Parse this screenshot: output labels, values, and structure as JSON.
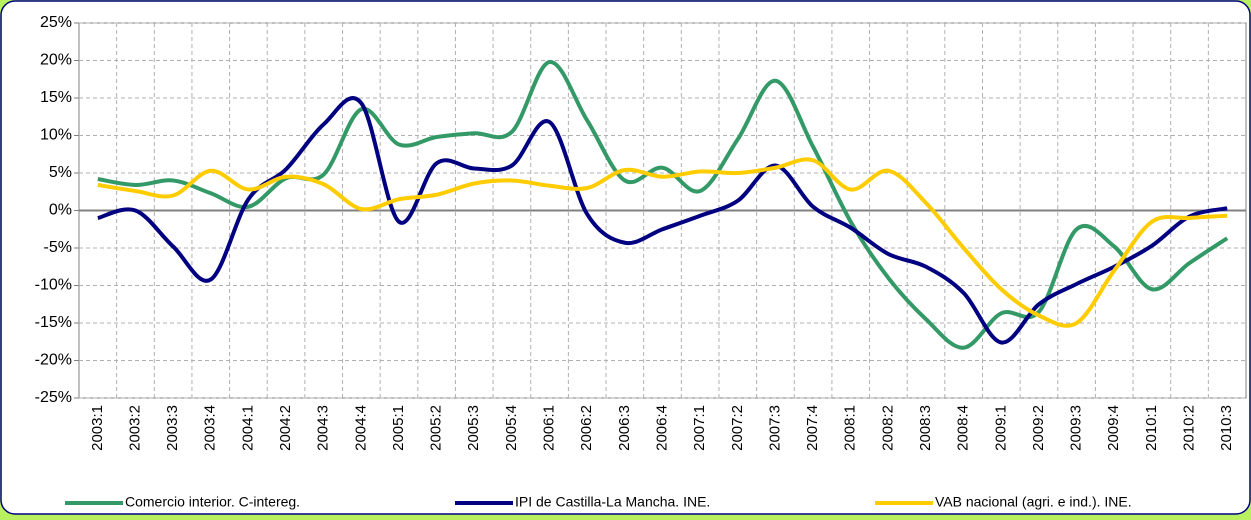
{
  "chart_data": {
    "type": "line",
    "categories": [
      "2003:1",
      "2003:2",
      "2003:3",
      "2003:4",
      "2004:1",
      "2004:2",
      "2004:3",
      "2004:4",
      "2005:1",
      "2005:2",
      "2005:3",
      "2005:4",
      "2006:1",
      "2006:2",
      "2006:3",
      "2006:4",
      "2007:1",
      "2007:2",
      "2007:3",
      "2007:4",
      "2008:1",
      "2008:2",
      "2008:3",
      "2008:4",
      "2009:1",
      "2009:2",
      "2009:3",
      "2009:4",
      "2010:1",
      "2010:2",
      "2010:3"
    ],
    "series": [
      {
        "name": "Comercio interior. C-intereg.",
        "color": "#339966",
        "values": [
          4.2,
          3.4,
          4.0,
          2.3,
          0.5,
          4.3,
          4.8,
          13.5,
          8.8,
          9.8,
          10.3,
          10.5,
          19.8,
          12.0,
          4.0,
          5.7,
          2.6,
          9.5,
          17.3,
          8.5,
          -1.5,
          -9.0,
          -14.5,
          -18.3,
          -13.7,
          -13.5,
          -2.5,
          -4.8,
          -10.5,
          -7.0,
          -3.7
        ]
      },
      {
        "name": "IPI de Castilla-La Mancha. INE.",
        "color": "#000080",
        "values": [
          -1.0,
          0.0,
          -4.8,
          -9.2,
          1.5,
          5.5,
          11.5,
          14.3,
          -1.5,
          6.3,
          5.6,
          6.0,
          11.8,
          -0.5,
          -4.3,
          -2.5,
          -0.7,
          1.3,
          6.0,
          0.5,
          -2.3,
          -5.8,
          -7.5,
          -11.0,
          -17.6,
          -12.5,
          -9.8,
          -7.5,
          -4.7,
          -0.8,
          0.3
        ]
      },
      {
        "name": "VAB nacional (agri. e ind.). INE.",
        "color": "#ffcc00",
        "values": [
          3.4,
          2.6,
          2.0,
          5.3,
          2.8,
          4.5,
          3.5,
          0.2,
          1.5,
          2.1,
          3.6,
          4.0,
          3.3,
          3.0,
          5.4,
          4.5,
          5.2,
          5.0,
          5.7,
          6.7,
          2.8,
          5.3,
          1.0,
          -5.0,
          -10.5,
          -14.0,
          -15.0,
          -8.0,
          -1.5,
          -1.0,
          -0.7
        ]
      }
    ],
    "ylim": [
      -25,
      25
    ],
    "yticks": [
      {
        "value": 25,
        "label": "25%"
      },
      {
        "value": 20,
        "label": "20%"
      },
      {
        "value": 15,
        "label": "15%"
      },
      {
        "value": 10,
        "label": "10%"
      },
      {
        "value": 5,
        "label": "5%"
      },
      {
        "value": 0,
        "label": "0%"
      },
      {
        "value": -5,
        "label": "-5%"
      },
      {
        "value": -10,
        "label": "-10%"
      },
      {
        "value": -15,
        "label": "-15%"
      },
      {
        "value": -20,
        "label": "-20%"
      },
      {
        "value": -25,
        "label": "-25%"
      }
    ],
    "grid": true,
    "legend": "bottom"
  }
}
